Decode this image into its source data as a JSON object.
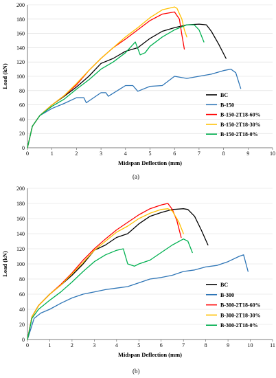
{
  "chart_data": [
    {
      "type": "line",
      "caption": "(a)",
      "xlabel": "Midspan Deflection (mm)",
      "ylabel": "Load (kN)",
      "xlim": [
        0,
        10
      ],
      "ylim": [
        0,
        200
      ],
      "xticks": [
        0,
        1,
        2,
        3,
        4,
        5,
        6,
        7,
        8,
        9,
        10
      ],
      "yticks": [
        0,
        20,
        40,
        60,
        80,
        100,
        120,
        140,
        160,
        180,
        200
      ],
      "grid": "horizontal",
      "legend_position": "right",
      "series": [
        {
          "name": "BC",
          "color": "#000000",
          "x": [
            0,
            0.2,
            0.5,
            1,
            1.5,
            2,
            2.5,
            3,
            3.5,
            4,
            4.5,
            5,
            5.5,
            6,
            6.5,
            7,
            7.3,
            7.5,
            7.8,
            8.1
          ],
          "y": [
            0,
            30,
            45,
            60,
            72,
            85,
            100,
            118,
            125,
            135,
            140,
            153,
            163,
            168,
            172,
            173,
            172,
            163,
            145,
            125
          ]
        },
        {
          "name": "B-150",
          "color": "#2e75b6",
          "x": [
            0,
            0.2,
            0.5,
            1,
            1.5,
            2,
            2.3,
            2.4,
            3,
            3.2,
            3.3,
            4,
            4.3,
            4.5,
            5,
            5.5,
            6,
            6.5,
            7,
            7.5,
            8,
            8.3,
            8.5,
            8.7
          ],
          "y": [
            0,
            30,
            45,
            55,
            62,
            70,
            70,
            63,
            77,
            77,
            72,
            87,
            87,
            79,
            86,
            87,
            100,
            97,
            100,
            103,
            108,
            110,
            105,
            83
          ]
        },
        {
          "name": "B-150-2T18-60%",
          "color": "#ff0000",
          "x": [
            0,
            0.2,
            0.5,
            1,
            1.5,
            2,
            2.5,
            3,
            3.5,
            4,
            4.5,
            5,
            5.5,
            6,
            6.2,
            6.3,
            6.4
          ],
          "y": [
            0,
            30,
            45,
            60,
            73,
            88,
            108,
            125,
            140,
            152,
            165,
            178,
            187,
            190,
            180,
            158,
            138
          ]
        },
        {
          "name": "B-150-2T18-30%",
          "color": "#ffc000",
          "x": [
            0,
            0.2,
            0.5,
            1,
            1.5,
            2,
            2.5,
            3,
            3.5,
            4,
            4.5,
            5,
            5.5,
            6,
            6.1,
            6.3,
            6.4,
            6.5
          ],
          "y": [
            0,
            30,
            45,
            60,
            73,
            90,
            108,
            125,
            140,
            155,
            168,
            182,
            193,
            197,
            195,
            180,
            165,
            155
          ]
        },
        {
          "name": "B-150-2T18-0%",
          "color": "#00b050",
          "x": [
            0,
            0.2,
            0.5,
            1,
            1.5,
            2,
            2.5,
            3,
            3.5,
            4,
            4.4,
            4.6,
            4.8,
            5,
            5.5,
            6,
            6.5,
            6.8,
            7,
            7.2
          ],
          "y": [
            0,
            30,
            45,
            58,
            68,
            82,
            95,
            110,
            120,
            133,
            148,
            130,
            133,
            142,
            155,
            165,
            172,
            172,
            165,
            148
          ]
        }
      ]
    },
    {
      "type": "line",
      "caption": "(b)",
      "xlabel": "Midspan Deflection (mm)",
      "ylabel": "Load (kN)",
      "xlim": [
        0,
        11
      ],
      "ylim": [
        0,
        200
      ],
      "xticks": [
        0,
        1,
        2,
        3,
        4,
        5,
        6,
        7,
        8,
        9,
        10,
        11
      ],
      "yticks": [
        0,
        20,
        40,
        60,
        80,
        100,
        120,
        140,
        160,
        180,
        200
      ],
      "grid": "horizontal",
      "legend_position": "right",
      "series": [
        {
          "name": "BC",
          "color": "#000000",
          "x": [
            0,
            0.2,
            0.5,
            1,
            1.5,
            2,
            2.5,
            3,
            3.5,
            4,
            4.5,
            5,
            5.5,
            6,
            6.5,
            7,
            7.2,
            7.5,
            7.8,
            8.1
          ],
          "y": [
            0,
            30,
            45,
            60,
            72,
            85,
            100,
            118,
            125,
            135,
            140,
            153,
            163,
            168,
            172,
            173,
            172,
            163,
            145,
            125
          ]
        },
        {
          "name": "B-300",
          "color": "#2e75b6",
          "x": [
            0,
            0.3,
            0.6,
            1,
            1.5,
            2,
            2.5,
            3,
            3.5,
            4,
            4.5,
            5,
            5.5,
            6,
            6.5,
            7,
            7.5,
            8,
            8.5,
            9,
            9.5,
            9.7,
            9.9
          ],
          "y": [
            0,
            28,
            35,
            40,
            48,
            55,
            60,
            63,
            66,
            68,
            70,
            75,
            80,
            82,
            85,
            90,
            92,
            96,
            98,
            103,
            110,
            112,
            90
          ]
        },
        {
          "name": "B-300-2T18-60%",
          "color": "#ff0000",
          "x": [
            0,
            0.2,
            0.5,
            1,
            1.5,
            2,
            2.5,
            3,
            3.5,
            4,
            4.5,
            5,
            5.5,
            6,
            6.3,
            6.5,
            6.7,
            6.9
          ],
          "y": [
            0,
            30,
            45,
            60,
            73,
            88,
            105,
            120,
            133,
            145,
            155,
            165,
            173,
            178,
            180,
            172,
            158,
            135
          ]
        },
        {
          "name": "B-300-2T18-30%",
          "color": "#ffc000",
          "x": [
            0,
            0.2,
            0.5,
            1,
            1.5,
            2,
            2.5,
            3,
            3.5,
            4,
            4.5,
            5,
            5.5,
            6,
            6.3,
            6.5,
            6.8,
            7
          ],
          "y": [
            0,
            30,
            45,
            60,
            72,
            87,
            102,
            118,
            130,
            142,
            150,
            160,
            167,
            172,
            173,
            170,
            155,
            140
          ]
        },
        {
          "name": "B-300-2T18-0%",
          "color": "#00b050",
          "x": [
            0,
            0.2,
            0.5,
            1,
            1.5,
            2,
            2.5,
            3,
            3.5,
            4,
            4.3,
            4.5,
            4.8,
            5,
            5.5,
            6,
            6.5,
            7,
            7.2,
            7.4
          ],
          "y": [
            0,
            28,
            40,
            52,
            63,
            76,
            90,
            103,
            112,
            118,
            120,
            100,
            97,
            100,
            105,
            115,
            125,
            133,
            130,
            115
          ]
        }
      ]
    }
  ]
}
